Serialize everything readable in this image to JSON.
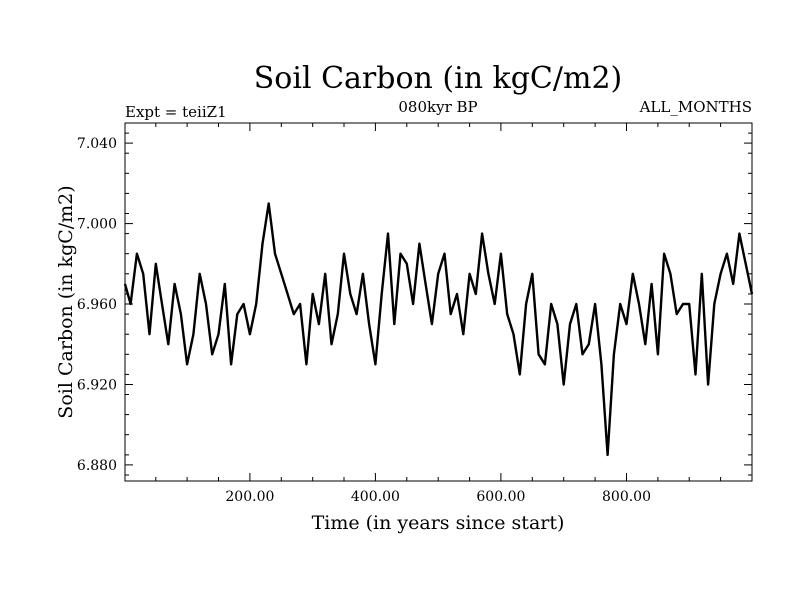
{
  "chart_data": {
    "type": "line",
    "title": "Soil Carbon (in kgC/m2)",
    "subtitle": "080kyr BP",
    "experiment": "Expt = teiiZ1",
    "season": "ALL_MONTHS",
    "xlabel": "Time (in years since start)",
    "ylabel": "Soil Carbon (in kgC/m2)",
    "xlim": [
      1,
      1000
    ],
    "ylim": [
      6.872,
      7.05
    ],
    "x_ticks": [
      200,
      400,
      600,
      800
    ],
    "x_tick_labels": [
      "200.00",
      "400.00",
      "600.00",
      "800.00"
    ],
    "y_ticks": [
      6.88,
      6.92,
      6.96,
      7.0,
      7.04
    ],
    "y_tick_labels": [
      "6.880",
      "6.920",
      "6.960",
      "7.000",
      "7.040"
    ],
    "grid": false,
    "line_color": "#000000",
    "series": [
      {
        "x": [
          1,
          10,
          20,
          30,
          40,
          50,
          60,
          70,
          80,
          90,
          100,
          110,
          120,
          130,
          140,
          150,
          160,
          170,
          180,
          190,
          200,
          210,
          220,
          230,
          240,
          250,
          260,
          270,
          280,
          290,
          300,
          310,
          320,
          330,
          340,
          350,
          360,
          370,
          380,
          390,
          400,
          410,
          420,
          430,
          440,
          450,
          460,
          470,
          480,
          490,
          500,
          510,
          520,
          530,
          540,
          550,
          560,
          570,
          580,
          590,
          600,
          610,
          620,
          630,
          640,
          650,
          660,
          670,
          680,
          690,
          700,
          710,
          720,
          730,
          740,
          750,
          760,
          770,
          780,
          790,
          800,
          810,
          820,
          830,
          840,
          850,
          860,
          870,
          880,
          890,
          900,
          910,
          920,
          930,
          940,
          950,
          960,
          970,
          980,
          990,
          1000
        ],
        "values": [
          6.97,
          6.96,
          6.985,
          6.975,
          6.945,
          6.98,
          6.96,
          6.94,
          6.97,
          6.955,
          6.93,
          6.945,
          6.975,
          6.96,
          6.935,
          6.945,
          6.97,
          6.93,
          6.955,
          6.96,
          6.945,
          6.96,
          6.99,
          7.01,
          6.985,
          6.975,
          6.965,
          6.955,
          6.96,
          6.93,
          6.965,
          6.95,
          6.975,
          6.94,
          6.955,
          6.985,
          6.965,
          6.955,
          6.975,
          6.95,
          6.93,
          6.965,
          6.995,
          6.95,
          6.985,
          6.98,
          6.96,
          6.99,
          6.97,
          6.95,
          6.975,
          6.985,
          6.955,
          6.965,
          6.945,
          6.975,
          6.965,
          6.995,
          6.975,
          6.96,
          6.985,
          6.955,
          6.945,
          6.925,
          6.96,
          6.975,
          6.935,
          6.93,
          6.96,
          6.95,
          6.92,
          6.95,
          6.96,
          6.935,
          6.94,
          6.96,
          6.93,
          6.885,
          6.935,
          6.96,
          6.95,
          6.975,
          6.96,
          6.94,
          6.97,
          6.935,
          6.985,
          6.975,
          6.955,
          6.96,
          6.96,
          6.925,
          6.975,
          6.92,
          6.96,
          6.975,
          6.985,
          6.97,
          6.995,
          6.98,
          6.965
        ]
      }
    ]
  }
}
